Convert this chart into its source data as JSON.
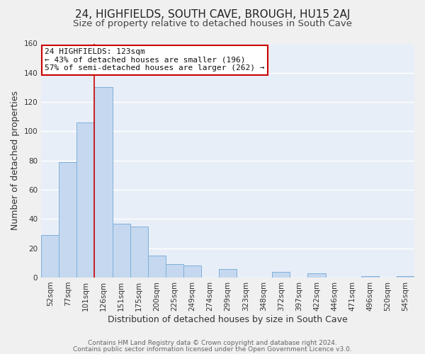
{
  "title": "24, HIGHFIELDS, SOUTH CAVE, BROUGH, HU15 2AJ",
  "subtitle": "Size of property relative to detached houses in South Cave",
  "xlabel": "Distribution of detached houses by size in South Cave",
  "ylabel": "Number of detached properties",
  "categories": [
    "52sqm",
    "77sqm",
    "101sqm",
    "126sqm",
    "151sqm",
    "175sqm",
    "200sqm",
    "225sqm",
    "249sqm",
    "274sqm",
    "299sqm",
    "323sqm",
    "348sqm",
    "372sqm",
    "397sqm",
    "422sqm",
    "446sqm",
    "471sqm",
    "496sqm",
    "520sqm",
    "545sqm"
  ],
  "values": [
    29,
    79,
    106,
    130,
    37,
    35,
    15,
    9,
    8,
    0,
    6,
    0,
    0,
    4,
    0,
    3,
    0,
    0,
    1,
    0,
    1
  ],
  "bar_color": "#c5d8f0",
  "bar_edge_color": "#7fb0d8",
  "vline_index": 3,
  "vline_color": "#cc0000",
  "ylim": [
    0,
    160
  ],
  "yticks": [
    0,
    20,
    40,
    60,
    80,
    100,
    120,
    140,
    160
  ],
  "annotation_text": "24 HIGHFIELDS: 123sqm\n← 43% of detached houses are smaller (196)\n57% of semi-detached houses are larger (262) →",
  "footer_line1": "Contains HM Land Registry data © Crown copyright and database right 2024.",
  "footer_line2": "Contains public sector information licensed under the Open Government Licence v3.0.",
  "background_color": "#f0f0f0",
  "plot_bg_color": "#e8eef8",
  "grid_color": "#ffffff",
  "title_fontsize": 11,
  "subtitle_fontsize": 9.5,
  "label_fontsize": 9,
  "tick_fontsize": 7.5,
  "annotation_fontsize": 8,
  "footer_fontsize": 6.5
}
